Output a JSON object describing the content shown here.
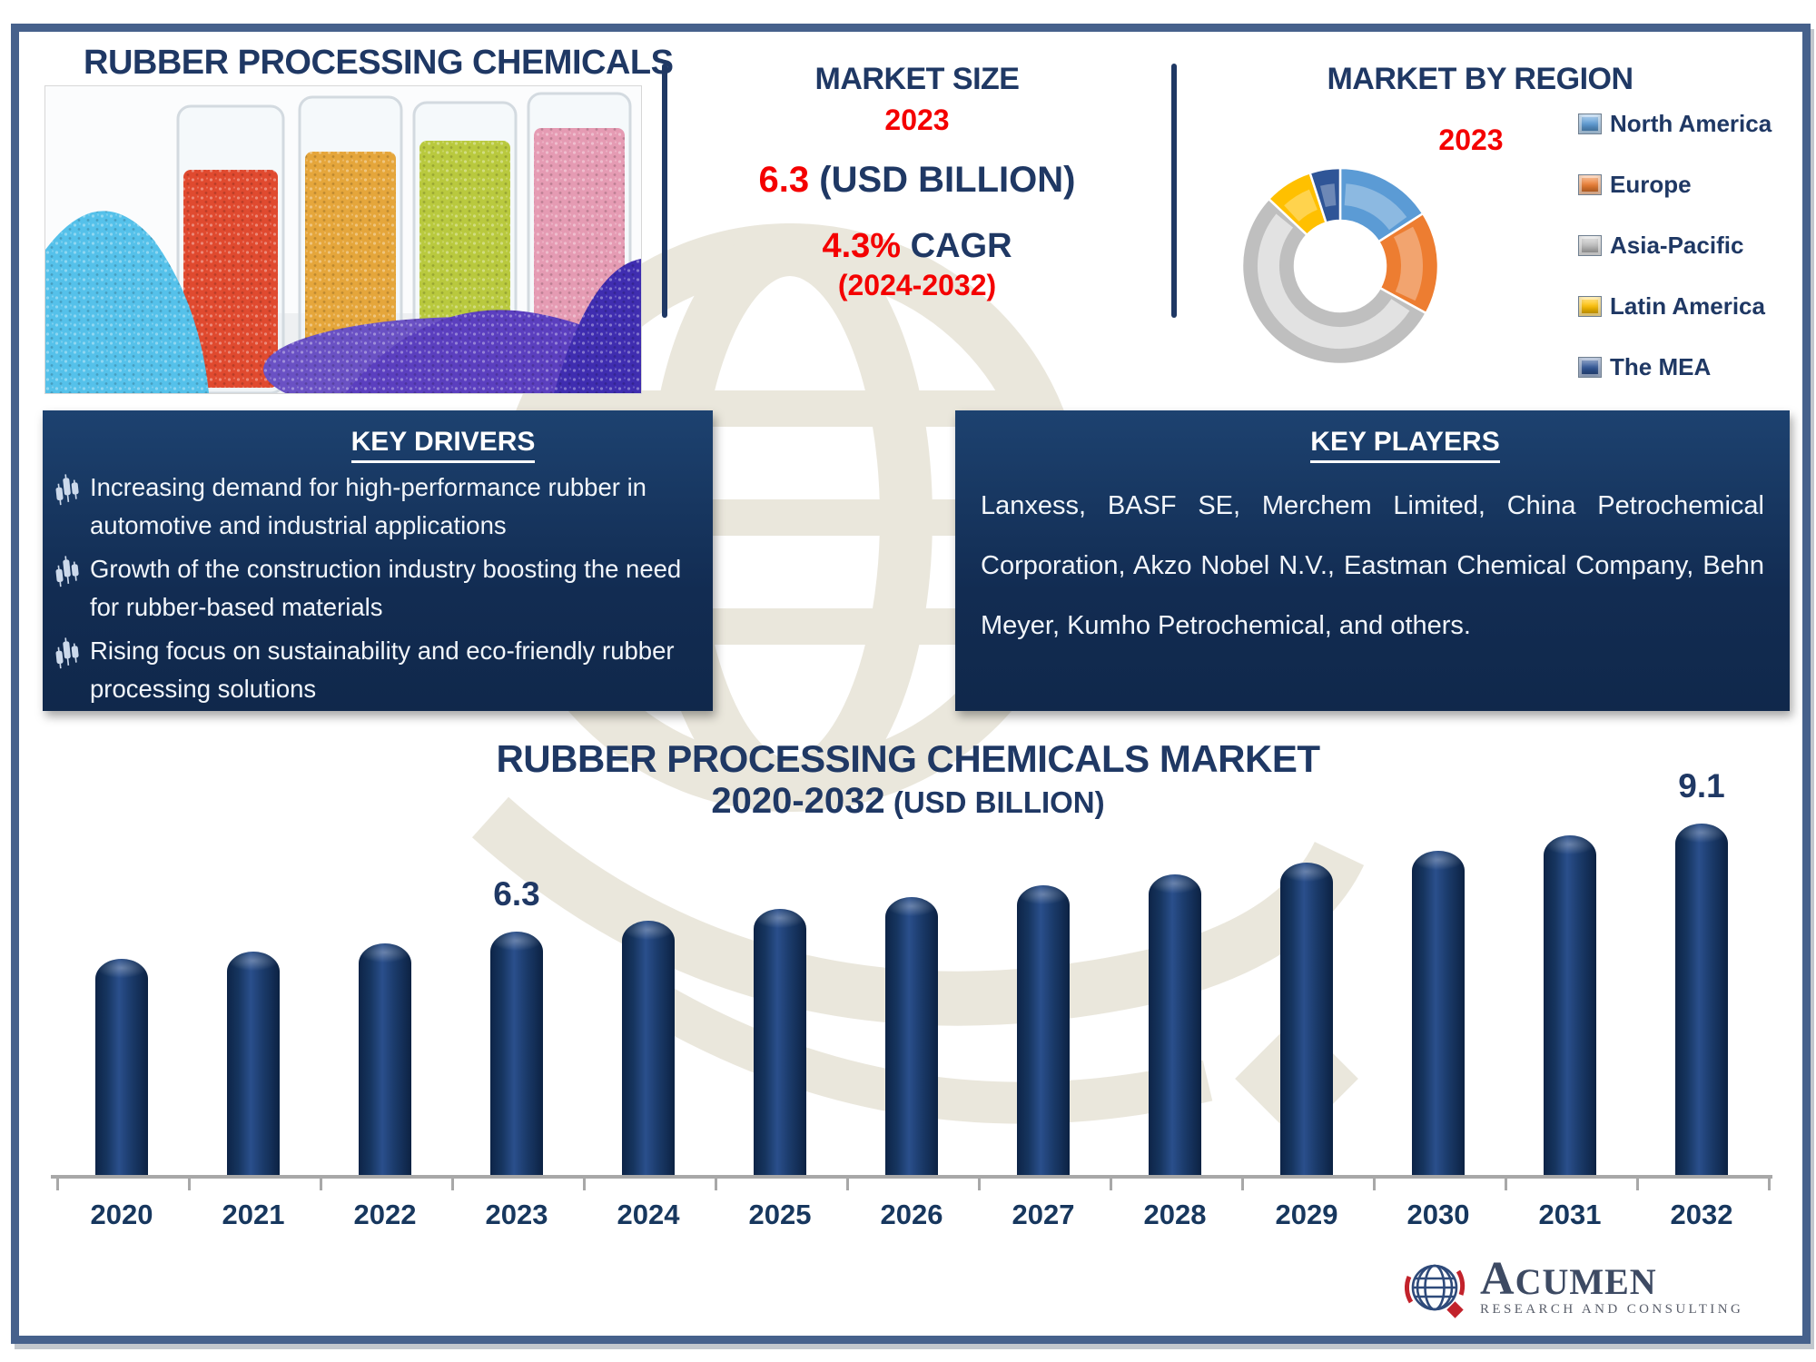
{
  "page": {
    "title": "RUBBER PROCESSING CHEMICALS",
    "border_color": "#46618C",
    "accent_navy": "#1F3864",
    "accent_red": "#F40000"
  },
  "market_size": {
    "heading": "MARKET SIZE",
    "year": "2023",
    "value": "6.3",
    "value_suffix": " (USD BILLION)",
    "cagr_value": "4.3%",
    "cagr_label": " CAGR",
    "cagr_period": "(2024-2032)"
  },
  "market_by_region": {
    "heading": "MARKET BY REGION",
    "year": "2023"
  },
  "key_drivers": {
    "heading": "KEY DRIVERS",
    "bullet_icon": "candlestick-chart-icon",
    "items": [
      "Increasing demand for high-performance rubber in automotive and industrial applications",
      "Growth of the construction industry boosting the need for rubber-based materials",
      "Rising focus on sustainability and eco-friendly rubber processing solutions"
    ]
  },
  "key_players": {
    "heading": "KEY PLAYERS",
    "text": "Lanxess, BASF SE, Merchem Limited, China Petrochemical Corporation, Akzo Nobel N.V., Eastman Chemical Company, Behn Meyer, Kumho Petrochemical, and others."
  },
  "chart_data": [
    {
      "type": "pie",
      "donut": true,
      "title": "MARKET BY REGION",
      "year_annotation": "2023",
      "labels": [
        "North America",
        "Europe",
        "Asia-Pacific",
        "Latin America",
        "The MEA"
      ],
      "values_pct_est": [
        16,
        17,
        54,
        8,
        5
      ],
      "colors": [
        "#5B9BD5",
        "#ED7D31",
        "#BFBFBF",
        "#FFC000",
        "#2F5597"
      ],
      "legend_position": "right"
    },
    {
      "type": "bar",
      "title": "RUBBER PROCESSING CHEMICALS MARKET",
      "subtitle": "2020-2032",
      "subtitle_unit": " (USD BILLION)",
      "categories": [
        "2020",
        "2021",
        "2022",
        "2023",
        "2024",
        "2025",
        "2026",
        "2027",
        "2028",
        "2029",
        "2030",
        "2031",
        "2032"
      ],
      "values": [
        5.6,
        5.8,
        6.0,
        6.3,
        6.6,
        6.9,
        7.2,
        7.5,
        7.8,
        8.1,
        8.4,
        8.8,
        9.1
      ],
      "data_labels": {
        "2023": "6.3",
        "2032": "9.1"
      },
      "ylim": [
        0,
        10
      ],
      "grid": false,
      "bar_color": "#15325F"
    }
  ],
  "logo": {
    "name_initial": "A",
    "name_rest": "CUMEN",
    "tagline": "RESEARCH AND CONSULTING"
  }
}
